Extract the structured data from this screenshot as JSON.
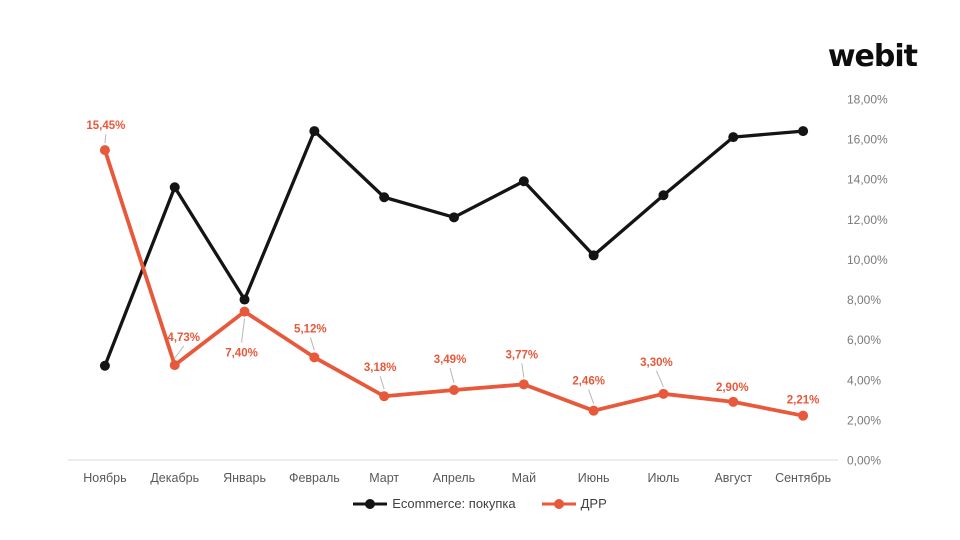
{
  "logo": {
    "text": "webit"
  },
  "colors": {
    "background": "#FFFFFF",
    "axis_line": "#D9D9D9",
    "ytick_text": "#7A7A7A",
    "xtick_text": "#595959",
    "leader_line": "#B7B7B7",
    "legend_text": "#3F3F3F"
  },
  "chart_data": {
    "type": "line",
    "title": "",
    "xlabel": "",
    "ylabel": "",
    "categories": [
      "Ноябрь",
      "Декабрь",
      "Январь",
      "Февраль",
      "Март",
      "Апрель",
      "Май",
      "Июнь",
      "Июль",
      "Август",
      "Сентябрь"
    ],
    "series": [
      {
        "id": "ecommerce",
        "name": "Ecommerce: покупка",
        "color": "#141414",
        "line_width": 3.3,
        "marker_radius": 5,
        "values": [
          4.7,
          13.6,
          8.0,
          16.4,
          13.1,
          12.1,
          13.9,
          10.2,
          13.2,
          16.1,
          16.4
        ]
      },
      {
        "id": "drr",
        "name": "ДРР",
        "color": "#E8583A",
        "line_width": 3.8,
        "marker_radius": 5,
        "values": [
          15.45,
          4.73,
          7.4,
          5.12,
          3.18,
          3.49,
          3.77,
          2.46,
          3.3,
          2.9,
          2.21
        ],
        "labels": [
          "15,45%",
          "4,73%",
          "7,40%",
          "5,12%",
          "3,18%",
          "3,49%",
          "3,77%",
          "2,46%",
          "3,30%",
          "2,90%",
          "2,21%"
        ],
        "label_offsets": [
          [
            1,
            -21,
            1
          ],
          [
            9,
            -24,
            1
          ],
          [
            -3,
            45,
            1
          ],
          [
            -4,
            -25,
            1
          ],
          [
            -4,
            -25,
            1
          ],
          [
            -4,
            -27,
            1
          ],
          [
            -2,
            -26,
            1
          ],
          [
            -5,
            -26,
            1
          ],
          [
            -7,
            -28,
            1
          ],
          [
            -1,
            -11,
            0
          ],
          [
            0,
            -12,
            0
          ]
        ]
      }
    ],
    "ylim": [
      0,
      18
    ],
    "ytick_step": 2,
    "ytick_labels": [
      "0,00%",
      "2,00%",
      "4,00%",
      "6,00%",
      "8,00%",
      "10,00%",
      "12,00%",
      "14,00%",
      "16,00%",
      "18,00%"
    ],
    "yaxis_side": "right",
    "grid": false,
    "legend_position": "bottom"
  }
}
